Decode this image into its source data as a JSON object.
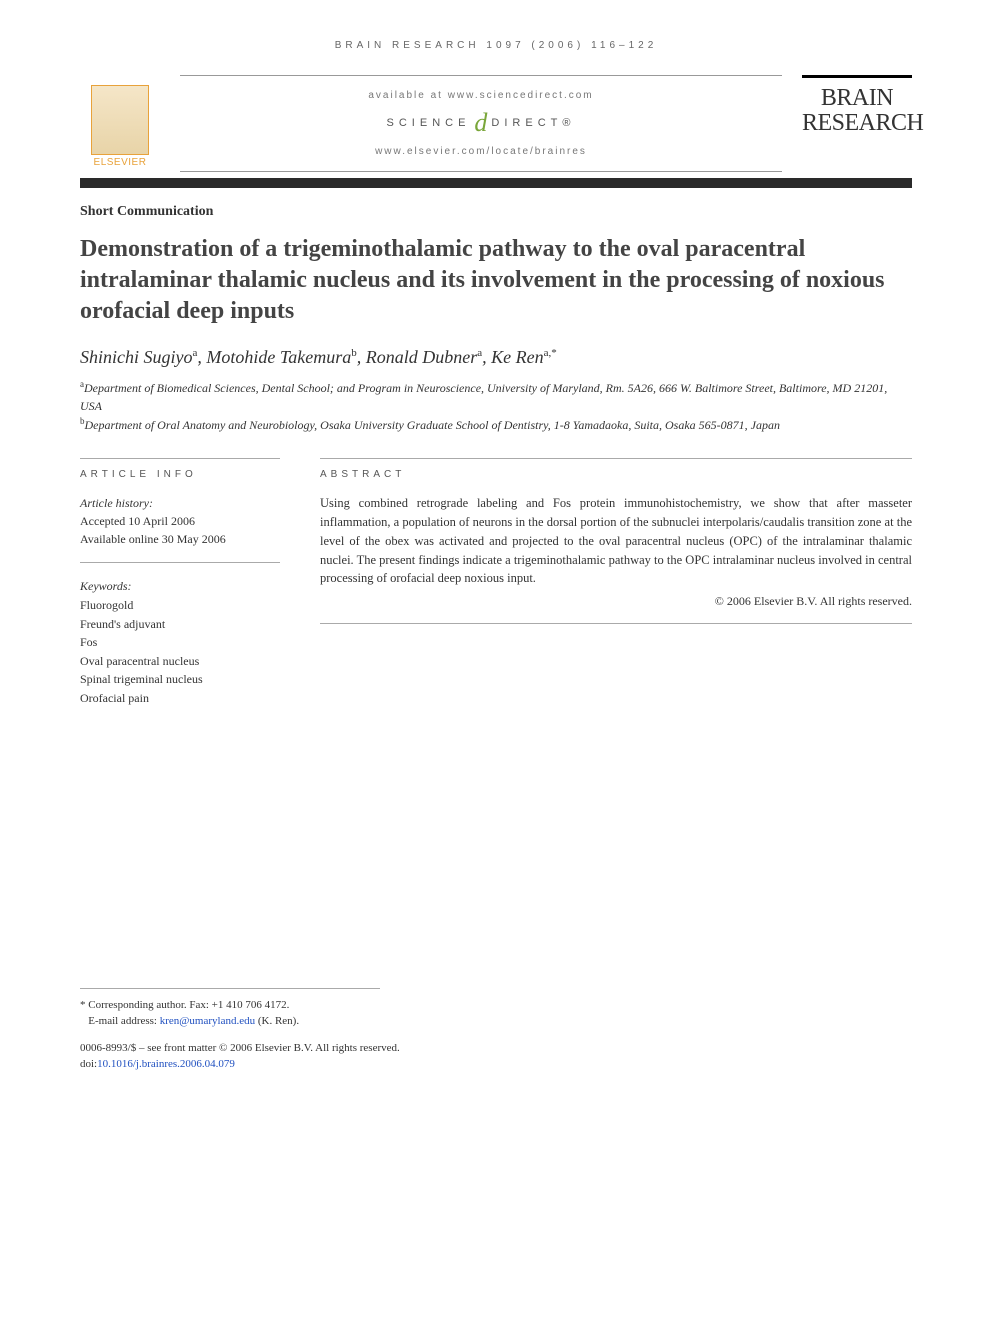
{
  "running_head": "BRAIN RESEARCH 1097 (2006) 116–122",
  "header": {
    "available_at": "available at www.sciencedirect.com",
    "sd_left": "SCIENCE",
    "sd_right": "DIRECT®",
    "journal_url": "www.elsevier.com/locate/brainres",
    "publisher_name": "ELSEVIER",
    "journal_line1": "BRAIN",
    "journal_line2": "RESEARCH"
  },
  "article_type": "Short Communication",
  "title": "Demonstration of a trigeminothalamic pathway to the oval paracentral intralaminar thalamic nucleus and its involvement in the processing of noxious orofacial deep inputs",
  "authors": [
    {
      "name": "Shinichi Sugiyo",
      "aff": "a"
    },
    {
      "name": "Motohide Takemura",
      "aff": "b"
    },
    {
      "name": "Ronald Dubner",
      "aff": "a"
    },
    {
      "name": "Ke Ren",
      "aff": "a,*"
    }
  ],
  "affiliations": {
    "a": "Department of Biomedical Sciences, Dental School; and Program in Neuroscience, University of Maryland, Rm. 5A26, 666 W. Baltimore Street, Baltimore, MD 21201, USA",
    "b": "Department of Oral Anatomy and Neurobiology, Osaka University Graduate School of Dentistry, 1-8 Yamadaoka, Suita, Osaka 565-0871, Japan"
  },
  "article_info": {
    "heading": "ARTICLE INFO",
    "history_label": "Article history:",
    "accepted": "Accepted 10 April 2006",
    "online": "Available online 30 May 2006",
    "keywords_label": "Keywords:",
    "keywords": [
      "Fluorogold",
      "Freund's adjuvant",
      "Fos",
      "Oval paracentral nucleus",
      "Spinal trigeminal nucleus",
      "Orofacial pain"
    ]
  },
  "abstract": {
    "heading": "ABSTRACT",
    "text": "Using combined retrograde labeling and Fos protein immunohistochemistry, we show that after masseter inflammation, a population of neurons in the dorsal portion of the subnuclei interpolaris/caudalis transition zone at the level of the obex was activated and projected to the oval paracentral nucleus (OPC) of the intralaminar thalamic nuclei. The present findings indicate a trigeminothalamic pathway to the OPC intralaminar nucleus involved in central processing of orofacial deep noxious input.",
    "copyright": "© 2006 Elsevier B.V. All rights reserved."
  },
  "footer": {
    "corresponding": "* Corresponding author. Fax: +1 410 706 4172.",
    "email_label": "E-mail address: ",
    "email": "kren@umaryland.edu",
    "email_suffix": " (K. Ren).",
    "issn_line": "0006-8993/$ – see front matter © 2006 Elsevier B.V. All rights reserved.",
    "doi_label": "doi:",
    "doi": "10.1016/j.brainres.2006.04.079"
  },
  "colors": {
    "publisher_orange": "#e8a23a",
    "sd_green": "#7aa63a",
    "link_blue": "#2050c0",
    "divider_dark": "#2a2a2a"
  }
}
